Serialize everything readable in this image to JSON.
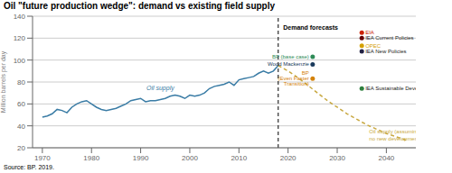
{
  "chart_data": {
    "type": "line",
    "title": "Oil \"future production wedge\": demand vs existing field supply",
    "ylabel": "Million barrels per day",
    "source": "Source: BP. 2019.",
    "xlim": [
      1968,
      2046
    ],
    "xticks": [
      1970,
      1980,
      1990,
      2000,
      2010,
      2020,
      2030,
      2040
    ],
    "ylim": [
      20,
      140
    ],
    "yticks": [
      20,
      40,
      60,
      80,
      100,
      120,
      140
    ],
    "grid": true,
    "series": [
      {
        "type": "line",
        "color": "#3a7ca5",
        "line_style": "solid",
        "x": [
          1970,
          1971,
          1972,
          1973,
          1974,
          1975,
          1976,
          1977,
          1978,
          1979,
          1980,
          1981,
          1982,
          1983,
          1984,
          1985,
          1986,
          1987,
          1988,
          1989,
          1990,
          1991,
          1992,
          1993,
          1994,
          1995,
          1996,
          1997,
          1998,
          1999,
          2000,
          2001,
          2002,
          2003,
          2004,
          2005,
          2006,
          2007,
          2008,
          2009,
          2010,
          2011,
          2012,
          2013,
          2014,
          2015,
          2016,
          2017,
          2018
        ],
        "values": [
          48,
          49,
          51,
          55,
          54,
          52,
          57,
          60,
          62,
          63,
          60,
          57,
          55,
          54,
          55,
          56,
          58,
          60,
          63,
          64,
          65,
          62,
          63,
          63,
          64,
          65,
          67,
          68,
          67,
          65,
          68,
          67,
          68,
          70,
          74,
          76,
          77,
          78,
          80,
          77,
          82,
          83,
          84,
          85,
          88,
          90,
          88,
          90,
          95
        ]
      },
      {
        "type": "line",
        "color": "#c8a840",
        "line_style": "dashed",
        "x": [
          2018,
          2020,
          2022,
          2024,
          2026,
          2028,
          2030,
          2032,
          2034,
          2036,
          2038,
          2040,
          2042,
          2044
        ],
        "values": [
          95,
          90,
          84,
          77,
          70,
          63,
          57,
          51,
          46,
          41,
          37,
          33,
          30,
          27
        ]
      },
      {
        "type": "scatter",
        "x": [
          2025,
          2025,
          2025,
          2035,
          2035,
          2035,
          2035,
          2035
        ],
        "values": [
          103,
          96,
          83,
          125,
          120,
          113,
          108,
          74
        ],
        "colors": [
          "#2e8b57",
          "#1a3a5c",
          "#d4820a",
          "#cc2200",
          "#660000",
          "#d4a000",
          "#222244",
          "#2e7f3e"
        ],
        "labels": [
          "BP (base case)",
          "Wood Mackenzie",
          "BP\n(Even Faster\nTransition)",
          "EIA",
          "IEA Current Policies",
          "OPEC",
          "IEA New Policies",
          "IEA Sustainable Development"
        ],
        "label_colors": [
          "#2e8b57",
          "#1a3a5c",
          "#d4820a",
          "#cc2200",
          "#222222",
          "#d4a000",
          "#222222",
          "#222222"
        ]
      }
    ],
    "annotations": [
      {
        "text": "Oil supply",
        "x": 1994,
        "y": 74,
        "color": "#3a7ca5"
      },
      {
        "text": "Demand forecasts",
        "x": 2019,
        "y": 132,
        "color": "#000000"
      },
      {
        "text": "Oil supply (assuming\nno new development)",
        "x": 2036.5,
        "y": 37,
        "color": "#c8a840"
      }
    ],
    "reference_lines": [
      {
        "x": 2018,
        "color": "#000000",
        "line_style": "dashed"
      }
    ]
  }
}
